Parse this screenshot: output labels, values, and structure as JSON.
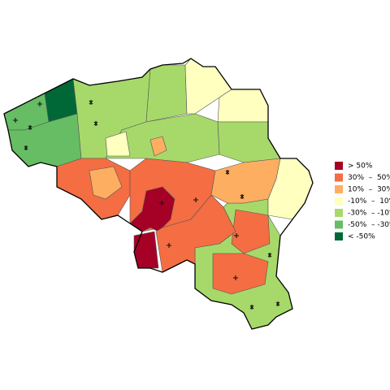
{
  "legend": {
    "entries": [
      {
        "label": "> 50%",
        "color": "#a50026"
      },
      {
        "label": "30%  –  50%",
        "color": "#f46d43"
      },
      {
        "label": "10%  –  30%",
        "color": "#fdae61"
      },
      {
        "label": "-10%  –  10%",
        "color": "#ffffbf"
      },
      {
        "label": "-30%  – -10%",
        "color": "#a6d96a"
      },
      {
        "label": "-50%  – -30%",
        "color": "#66bd63"
      },
      {
        "label": "< -50%",
        "color": "#006837"
      }
    ]
  }
}
